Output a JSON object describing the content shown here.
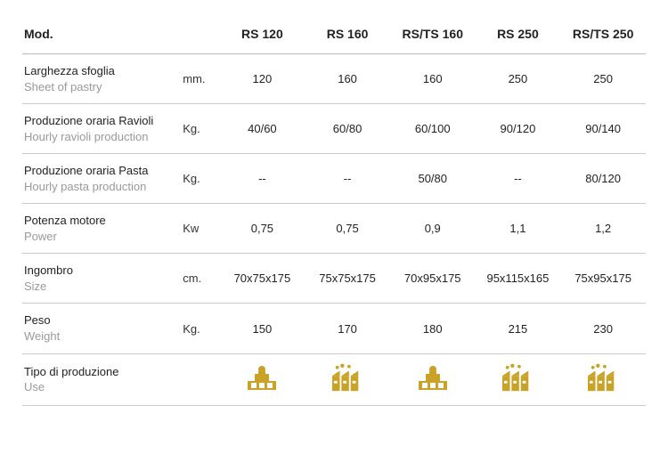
{
  "header": {
    "mod": "Mod.",
    "cols": [
      "RS 120",
      "RS 160",
      "RS/TS 160",
      "RS 250",
      "RS/TS 250"
    ]
  },
  "rows": [
    {
      "it": "Larghezza sfoglia",
      "en": "Sheet of pastry",
      "unit": "mm.",
      "vals": [
        "120",
        "160",
        "160",
        "250",
        "250"
      ]
    },
    {
      "it": "Produzione oraria Ravioli",
      "en": "Hourly ravioli production",
      "unit": "Kg.",
      "vals": [
        "40/60",
        "60/80",
        "60/100",
        "90/120",
        "90/140"
      ]
    },
    {
      "it": "Produzione oraria Pasta",
      "en": "Hourly pasta production",
      "unit": "Kg.",
      "vals": [
        "--",
        "--",
        "50/80",
        "--",
        "80/120"
      ]
    },
    {
      "it": "Potenza motore",
      "en": "Power",
      "unit": "Kw",
      "vals": [
        "0,75",
        "0,75",
        "0,9",
        "1,1",
        "1,2"
      ]
    },
    {
      "it": "Ingombro",
      "en": "Size",
      "unit": "cm.",
      "vals": [
        "70x75x175",
        "75x75x175",
        "70x95x175",
        "95x115x165",
        "75x95x175"
      ]
    },
    {
      "it": "Peso",
      "en": "Weight",
      "unit": "Kg.",
      "vals": [
        "150",
        "170",
        "180",
        "215",
        "230"
      ]
    }
  ],
  "useRow": {
    "it": "Tipo di produzione",
    "en": "Use",
    "icons": [
      "shop",
      "factory",
      "shop",
      "factory",
      "factory"
    ]
  },
  "style": {
    "icon_color": "#c9a227",
    "text_color": "#222222",
    "sub_color": "#999999",
    "border_color": "#cccccc",
    "font_size_header": 14,
    "font_size_body": 13
  }
}
